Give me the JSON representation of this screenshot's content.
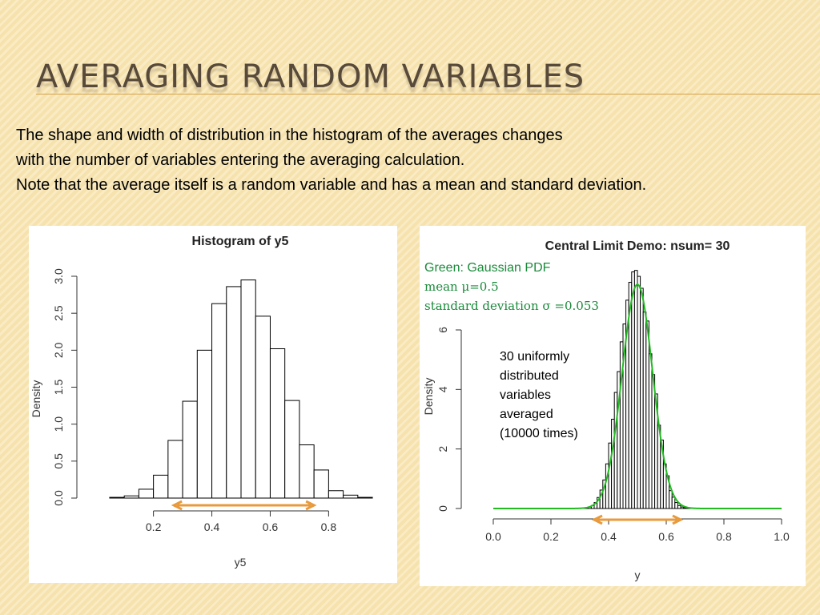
{
  "slide": {
    "title": "AVERAGING RANDOM VARIABLES",
    "text_lines": [
      "The shape and width of distribution in the histogram of the averages changes",
      "with the number of variables entering the averaging calculation.",
      "Note that the average itself is a random variable and has a mean and standard deviation."
    ]
  },
  "colors": {
    "background": "#f8e6b4",
    "title": "#584a3a",
    "rule": "#d4a24c",
    "arrow": "#e89a3c",
    "gaussian": "#22bb22",
    "annotation_green": "#1a8a3a"
  },
  "chart_data": [
    {
      "type": "bar",
      "title": "Histogram of y5",
      "xlabel": "y5",
      "ylabel": "Density",
      "bin_width": 0.05,
      "bin_starts": [
        0.05,
        0.1,
        0.15,
        0.2,
        0.25,
        0.3,
        0.35,
        0.4,
        0.45,
        0.5,
        0.55,
        0.6,
        0.65,
        0.7,
        0.75,
        0.8,
        0.85,
        0.9
      ],
      "values": [
        0.01,
        0.03,
        0.12,
        0.31,
        0.78,
        1.31,
        2.0,
        2.63,
        2.86,
        2.95,
        2.46,
        2.02,
        1.32,
        0.72,
        0.38,
        0.1,
        0.04,
        0.01
      ],
      "xticks": [
        "0.2",
        "0.4",
        "0.6",
        "0.8"
      ],
      "xtick_values": [
        0.2,
        0.4,
        0.6,
        0.8
      ],
      "yticks": [
        "0.0",
        "0.5",
        "1.0",
        "1.5",
        "2.0",
        "2.5",
        "3.0"
      ],
      "ytick_values": [
        0,
        0.5,
        1.0,
        1.5,
        2.0,
        2.5,
        3.0
      ],
      "xlim": [
        0.02,
        0.98
      ],
      "ylim": [
        0,
        3.0
      ],
      "arrow_range": [
        0.27,
        0.75
      ]
    },
    {
      "type": "bar",
      "title": "Central Limit Demo: nsum= 30",
      "xlabel": "y",
      "ylabel": "Density",
      "bin_width": 0.01,
      "bin_starts": [
        0.31,
        0.32,
        0.33,
        0.34,
        0.35,
        0.36,
        0.37,
        0.38,
        0.39,
        0.4,
        0.41,
        0.42,
        0.43,
        0.44,
        0.45,
        0.46,
        0.47,
        0.48,
        0.49,
        0.5,
        0.51,
        0.52,
        0.53,
        0.54,
        0.55,
        0.56,
        0.57,
        0.58,
        0.59,
        0.6,
        0.61,
        0.62,
        0.63,
        0.64,
        0.65,
        0.66,
        0.67,
        0.68,
        0.69
      ],
      "values": [
        0.01,
        0.02,
        0.05,
        0.1,
        0.2,
        0.37,
        0.62,
        0.96,
        1.5,
        2.2,
        3.0,
        3.9,
        4.6,
        5.6,
        6.2,
        7.0,
        7.6,
        7.95,
        8.0,
        7.8,
        7.4,
        6.6,
        6.3,
        5.2,
        4.5,
        3.85,
        2.8,
        2.3,
        1.5,
        1.1,
        0.6,
        0.38,
        0.2,
        0.1,
        0.05,
        0.03,
        0.01,
        0.01,
        0.01
      ],
      "gaussian": {
        "mean": 0.5,
        "sd": 0.053,
        "label": "Green: Gaussian PDF"
      },
      "annotations": {
        "mean_label": "mean μ=0.5",
        "sd_label": "standard deviation σ =0.053",
        "note_lines": [
          "30 uniformly",
          "distributed",
          "variables",
          "averaged",
          "(10000 times)"
        ]
      },
      "xticks": [
        "0.0",
        "0.2",
        "0.4",
        "0.6",
        "0.8",
        "1.0"
      ],
      "xtick_values": [
        0,
        0.2,
        0.4,
        0.6,
        0.8,
        1.0
      ],
      "yticks": [
        "0",
        "2",
        "4",
        "6"
      ],
      "ytick_values": [
        0,
        2,
        4,
        6
      ],
      "xlim": [
        0,
        1.0
      ],
      "ylim": [
        0,
        6
      ],
      "arrow_range": [
        0.35,
        0.65
      ]
    }
  ]
}
